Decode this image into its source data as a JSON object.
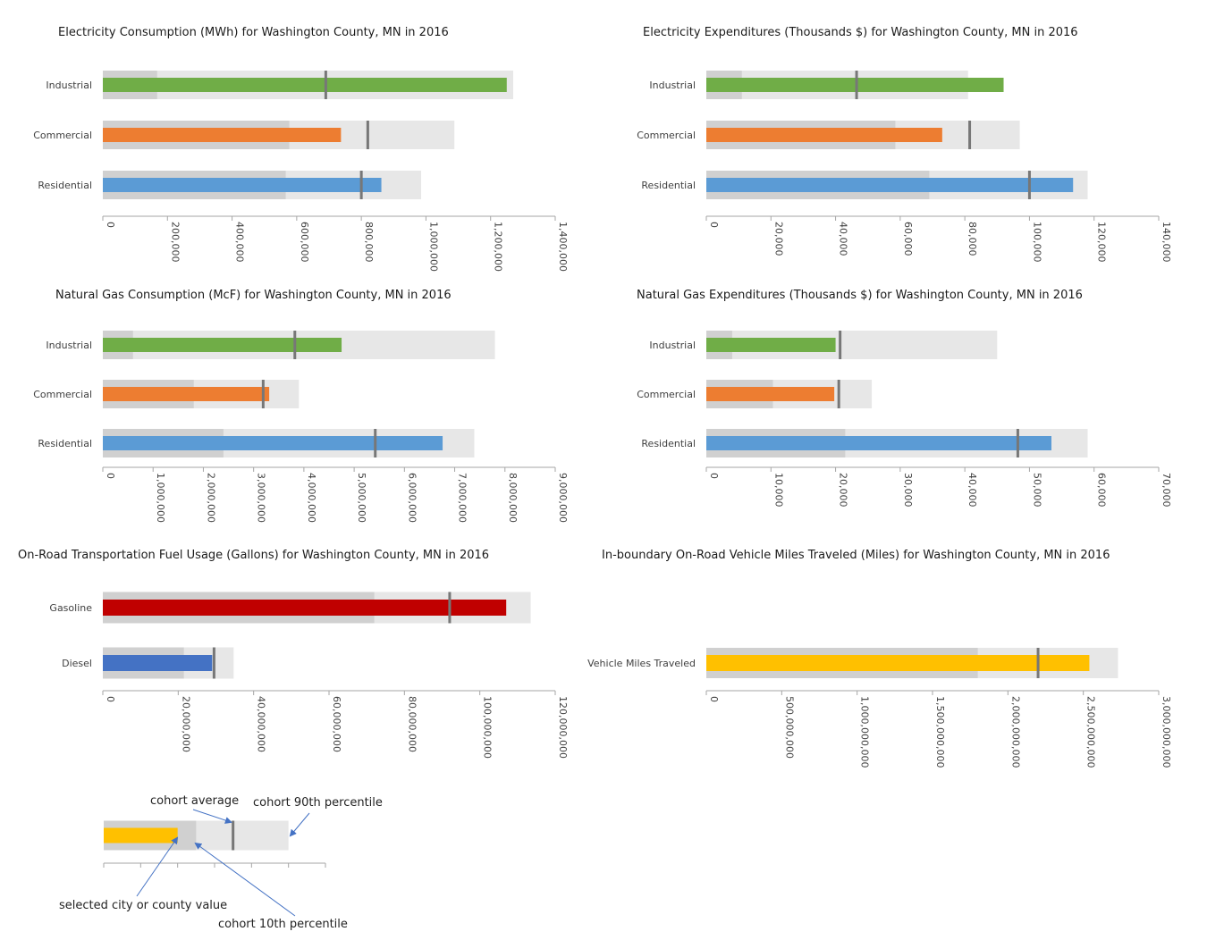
{
  "chart_data": [
    {
      "type": "bar",
      "subtype": "bullet",
      "title": "Electricity Consumption (MWh) for Washington County, MN in 2016",
      "xlim": [
        0,
        1400000
      ],
      "ticks": [
        0,
        200000,
        400000,
        600000,
        800000,
        1000000,
        1200000,
        1400000
      ],
      "tick_labels": [
        "0",
        "200,000",
        "400,000",
        "600,000",
        "800,000",
        "1,000,000",
        "1,200,000",
        "1,400,000"
      ],
      "rows": [
        {
          "label": "Industrial",
          "value": 1250000,
          "p10": 168000,
          "p90": 1270000,
          "avg": 690000,
          "color": "#70ad47"
        },
        {
          "label": "Commercial",
          "value": 737000,
          "p10": 577000,
          "p90": 1088000,
          "avg": 820000,
          "color": "#ed7d31"
        },
        {
          "label": "Residential",
          "value": 862000,
          "p10": 566000,
          "p90": 985000,
          "avg": 800000,
          "color": "#5b9bd5"
        }
      ]
    },
    {
      "type": "bar",
      "subtype": "bullet",
      "title": "Electricity Expenditures (Thousands $) for Washington County, MN in 2016",
      "xlim": [
        0,
        140000
      ],
      "ticks": [
        0,
        20000,
        40000,
        60000,
        80000,
        100000,
        120000,
        140000
      ],
      "tick_labels": [
        "0",
        "20,000",
        "40,000",
        "60,000",
        "80,000",
        "100,000",
        "120,000",
        "140,000"
      ],
      "rows": [
        {
          "label": "Industrial",
          "value": 92000,
          "p10": 11000,
          "p90": 81000,
          "avg": 46500,
          "color": "#70ad47"
        },
        {
          "label": "Commercial",
          "value": 73000,
          "p10": 58500,
          "p90": 97000,
          "avg": 81500,
          "color": "#ed7d31"
        },
        {
          "label": "Residential",
          "value": 113500,
          "p10": 69000,
          "p90": 118000,
          "avg": 100000,
          "color": "#5b9bd5"
        }
      ]
    },
    {
      "type": "bar",
      "subtype": "bullet",
      "title": "Natural Gas Consumption (McF) for Washington County, MN in 2016",
      "xlim": [
        0,
        9000000
      ],
      "ticks": [
        0,
        1000000,
        2000000,
        3000000,
        4000000,
        5000000,
        6000000,
        7000000,
        8000000,
        9000000
      ],
      "tick_labels": [
        "0",
        "1,000,000",
        "2,000,000",
        "3,000,000",
        "4,000,000",
        "5,000,000",
        "6,000,000",
        "7,000,000",
        "8,000,000",
        "9,000,000"
      ],
      "rows": [
        {
          "label": "Industrial",
          "value": 4750000,
          "p10": 600000,
          "p90": 7800000,
          "avg": 3820000,
          "color": "#70ad47"
        },
        {
          "label": "Commercial",
          "value": 3310000,
          "p10": 1810000,
          "p90": 3900000,
          "avg": 3190000,
          "color": "#ed7d31"
        },
        {
          "label": "Residential",
          "value": 6760000,
          "p10": 2400000,
          "p90": 7390000,
          "avg": 5420000,
          "color": "#5b9bd5"
        }
      ]
    },
    {
      "type": "bar",
      "subtype": "bullet",
      "title": "Natural Gas Expenditures (Thousands $) for Washington County, MN in 2016",
      "xlim": [
        0,
        70000
      ],
      "ticks": [
        0,
        10000,
        20000,
        30000,
        40000,
        50000,
        60000,
        70000
      ],
      "tick_labels": [
        "0",
        "10,000",
        "20,000",
        "30,000",
        "40,000",
        "50,000",
        "60,000",
        "70,000"
      ],
      "rows": [
        {
          "label": "Industrial",
          "value": 20000,
          "p10": 4000,
          "p90": 45000,
          "avg": 20700,
          "color": "#70ad47"
        },
        {
          "label": "Commercial",
          "value": 19800,
          "p10": 10300,
          "p90": 25600,
          "avg": 20500,
          "color": "#ed7d31"
        },
        {
          "label": "Residential",
          "value": 53400,
          "p10": 21500,
          "p90": 59000,
          "avg": 48200,
          "color": "#5b9bd5"
        }
      ]
    },
    {
      "type": "bar",
      "subtype": "bullet",
      "title": "On-Road Transportation Fuel Usage (Gallons) for Washington County, MN in 2016",
      "xlim": [
        0,
        120000000
      ],
      "ticks": [
        0,
        20000000,
        40000000,
        60000000,
        80000000,
        100000000,
        120000000
      ],
      "tick_labels": [
        "0",
        "20,000,000",
        "40,000,000",
        "60,000,000",
        "80,000,000",
        "100,000,000",
        "120,000,000"
      ],
      "rows": [
        {
          "label": "Gasoline",
          "value": 107000000,
          "p10": 72000000,
          "p90": 113500000,
          "avg": 92000000,
          "color": "#c00000"
        },
        {
          "label": "Diesel",
          "value": 29000000,
          "p10": 21500000,
          "p90": 34700000,
          "avg": 29500000,
          "color": "#4472c4"
        }
      ]
    },
    {
      "type": "bar",
      "subtype": "bullet",
      "title": "In-boundary On-Road Vehicle Miles Traveled (Miles) for Washington County, MN in 2016",
      "xlim": [
        0,
        3000000000
      ],
      "ticks": [
        0,
        500000000,
        1000000000,
        1500000000,
        2000000000,
        2500000000,
        3000000000
      ],
      "tick_labels": [
        "0",
        "500,000,000",
        "1,000,000,000",
        "1,500,000,000",
        "2,000,000,000",
        "2,500,000,000",
        "3,000,000,000"
      ],
      "rows": [
        {
          "label": "Vehicle Miles Traveled",
          "value": 2540000000,
          "p10": 1800000000,
          "p90": 2730000000,
          "avg": 2200000000,
          "color": "#ffc000"
        }
      ]
    }
  ],
  "legend": {
    "value": 4,
    "p10": 5,
    "p90": 10,
    "avg": 7,
    "axis_max": 12,
    "color": "#ffc000",
    "labels": {
      "avg": "cohort average",
      "p90": "cohort 90th percentile",
      "value": "selected city or county value",
      "p10": "cohort 10th percentile"
    }
  }
}
